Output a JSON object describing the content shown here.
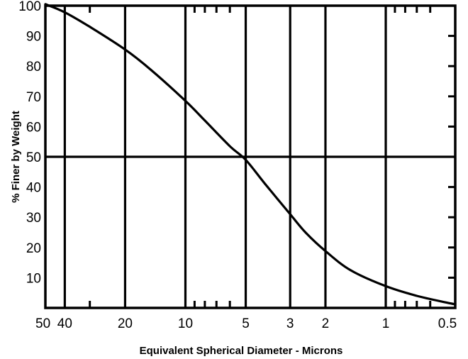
{
  "chart_data": {
    "type": "line",
    "xlabel": "Equivalent Spherical Diameter - Microns",
    "ylabel": "% Finer by Weight",
    "x_scale": "log",
    "x_direction": "descending",
    "xlim": [
      50,
      0.45
    ],
    "ylim": [
      0,
      100
    ],
    "x_tick_labels": [
      "50",
      "40",
      "20",
      "10",
      "5",
      "3",
      "2",
      "1",
      "0.5"
    ],
    "x_tick_values": [
      50,
      40,
      20,
      10,
      5,
      3,
      2,
      1,
      0.5
    ],
    "y_tick_labels": [
      "10",
      "20",
      "30",
      "40",
      "50",
      "60",
      "70",
      "80",
      "90",
      "100"
    ],
    "y_tick_values": [
      10,
      20,
      30,
      40,
      50,
      60,
      70,
      80,
      90,
      100
    ],
    "x_gridlines": [
      40,
      20,
      10,
      5,
      3,
      2,
      1
    ],
    "y_gridlines": [
      50
    ],
    "x_minor_ticks": [
      30,
      9,
      8,
      7,
      6,
      0.9,
      0.8,
      0.7,
      0.6
    ],
    "series": [
      {
        "x": [
          50,
          40,
          30,
          20,
          15,
          10,
          8,
          6,
          5,
          4,
          3,
          2.5,
          2,
          1.5,
          1,
          0.7,
          0.5,
          0.45
        ],
        "values": [
          100.5,
          97.8,
          93,
          85.5,
          79,
          68.5,
          62,
          53.5,
          49,
          41,
          31,
          24.8,
          18.8,
          12.5,
          7.2,
          4,
          1.8,
          1.2
        ]
      }
    ]
  }
}
